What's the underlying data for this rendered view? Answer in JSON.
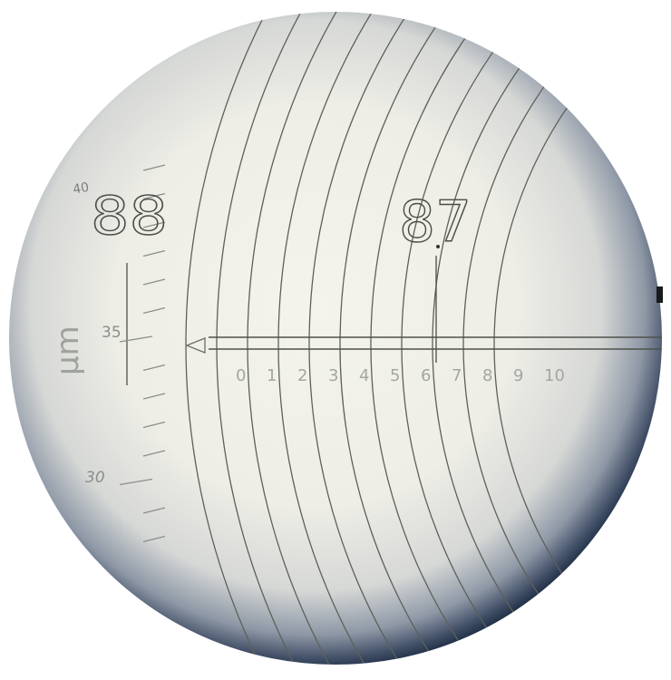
{
  "readouts": {
    "left_number": "88",
    "right_number": "87"
  },
  "vertical_scale": {
    "unit": "μm",
    "labels": [
      "40",
      "35",
      "30"
    ]
  },
  "horizontal_scale": {
    "labels": [
      "0",
      "1",
      "2",
      "3",
      "4",
      "5",
      "6",
      "7",
      "8",
      "9",
      "10"
    ]
  },
  "colors": {
    "field_light": "#f3f2ea",
    "field_mid": "#d9dad6",
    "vignette_edge": "#1f2d45",
    "reticle_line": "#55584f",
    "label_dark": "#4a4d48",
    "label_faint": "#9ea39e"
  }
}
